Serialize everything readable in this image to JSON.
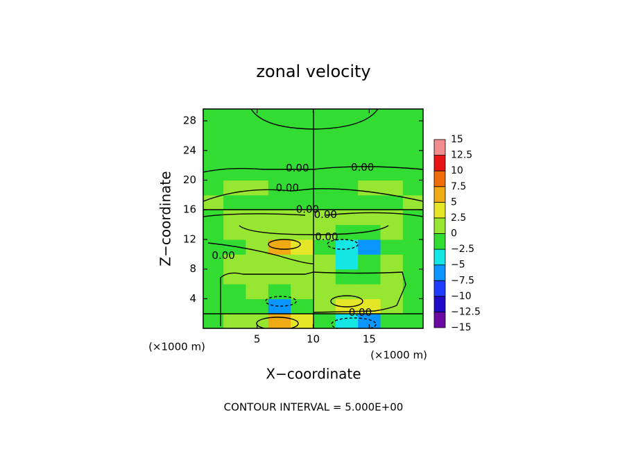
{
  "chart_data": {
    "type": "contour",
    "title": "zonal velocity",
    "xlabel": "X−coordinate",
    "ylabel": "Z−coordinate",
    "x_unit_labels": [
      "(×1000 m)",
      "(×1000 m)"
    ],
    "footnote": "CONTOUR INTERVAL = 5.000E+00",
    "xlim": [
      0.2,
      19.8
    ],
    "ylim": [
      0,
      29.6
    ],
    "xticks": [
      5,
      10,
      15
    ],
    "yticks": [
      4,
      8,
      12,
      16,
      20,
      24,
      28
    ],
    "x": [
      1,
      3,
      5,
      7,
      9,
      11,
      13,
      15,
      17,
      19
    ],
    "y": [
      1,
      3,
      5,
      7,
      9,
      11,
      13,
      15,
      17,
      19,
      21,
      23,
      25,
      27,
      29
    ],
    "values": [
      [
        -0.5,
        0.5,
        2,
        6,
        3,
        -0.5,
        -4,
        -7,
        -2,
        -0.5
      ],
      [
        -0.5,
        -0.5,
        -1,
        -5.5,
        -1,
        0.5,
        4,
        3,
        1,
        -0.5
      ],
      [
        -0.5,
        -0.5,
        0.5,
        -1,
        0.5,
        0.5,
        1,
        0.5,
        0.5,
        -0.5
      ],
      [
        -0.5,
        0.5,
        1,
        1,
        0.5,
        0.5,
        -1,
        -1,
        0.5,
        -0.5
      ],
      [
        -0.5,
        0.5,
        1,
        0.5,
        0.5,
        0.5,
        -2.6,
        -1,
        0.5,
        -0.5
      ],
      [
        -0.5,
        -0.5,
        1,
        5,
        3,
        -1,
        -3,
        -5.5,
        -1,
        -0.5
      ],
      [
        -0.5,
        0.5,
        1,
        1.5,
        1,
        0.5,
        -1,
        -1.5,
        0.5,
        -0.5
      ],
      [
        -0.5,
        0.5,
        1,
        0.5,
        0.5,
        0.5,
        0.5,
        1,
        0.5,
        -0.5
      ],
      [
        0.5,
        -0.5,
        -0.5,
        -0.5,
        -0.5,
        -0.5,
        -0.5,
        -0.5,
        -0.5,
        0.5
      ],
      [
        -0.5,
        0.5,
        0.5,
        -0.5,
        -0.5,
        -0.5,
        -0.5,
        0.5,
        0.5,
        -0.5
      ],
      [
        -0.5,
        -0.5,
        -0.5,
        -0.5,
        -0.5,
        -0.5,
        -0.5,
        -0.5,
        -0.5,
        -0.5
      ],
      [
        -0.5,
        -0.5,
        -0.5,
        -0.5,
        -0.5,
        -0.5,
        -0.5,
        -0.5,
        -0.5,
        -0.5
      ],
      [
        -0.5,
        -0.5,
        -0.5,
        -0.5,
        -0.5,
        -0.5,
        -0.5,
        -0.5,
        -0.5,
        -0.5
      ],
      [
        -0.5,
        -0.5,
        -0.5,
        -0.5,
        -0.5,
        -0.5,
        -0.5,
        -0.5,
        -0.5,
        -0.5
      ],
      [
        -0.5,
        -0.5,
        -0.5,
        -0.5,
        -0.5,
        -0.5,
        -0.5,
        -0.5,
        -0.5,
        -0.5
      ]
    ],
    "annotations": [
      {
        "text": "0.00",
        "x": 8.6,
        "y": 21.6
      },
      {
        "text": "0.00",
        "x": 14.4,
        "y": 21.7
      },
      {
        "text": "0.00",
        "x": 7.7,
        "y": 18.9
      },
      {
        "text": "0.00",
        "x": 9.5,
        "y": 16
      },
      {
        "text": "0.00",
        "x": 11.1,
        "y": 15.3
      },
      {
        "text": "0.00",
        "x": 11.2,
        "y": 12.3
      },
      {
        "text": "0.00",
        "x": 2,
        "y": 9.8
      },
      {
        "text": "0.00",
        "x": 14.2,
        "y": 2.1
      }
    ],
    "colorbar": {
      "ticks": [
        {
          "value": -15,
          "label": "−15"
        },
        {
          "value": -12.5,
          "label": "−12.5"
        },
        {
          "value": -10,
          "label": "−10"
        },
        {
          "value": -7.5,
          "label": "−7.5"
        },
        {
          "value": -5,
          "label": "−5"
        },
        {
          "value": -2.5,
          "label": "−2.5"
        },
        0,
        2.5,
        5,
        7.5,
        10,
        12.5,
        15
      ],
      "colors": [
        "#6a0aa0",
        "#1e0ac8",
        "#1e3cff",
        "#0a96ff",
        "#14e6e6",
        "#32dc32",
        "#96e632",
        "#e6e628",
        "#f0aa14",
        "#f06e0a",
        "#e61414",
        "#f08c8c"
      ]
    }
  }
}
